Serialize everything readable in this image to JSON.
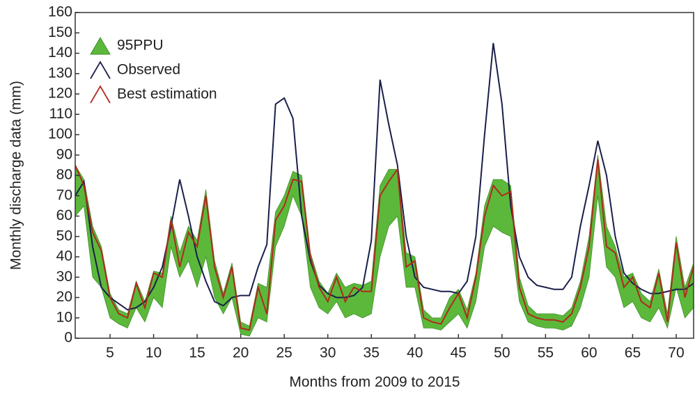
{
  "chart_data": {
    "type": "line",
    "xlabel": "Months from 2009 to 2015",
    "ylabel": "Monthly discharge data (mm)",
    "xlim": [
      1,
      72
    ],
    "xticks": [
      5,
      10,
      15,
      20,
      25,
      30,
      35,
      40,
      45,
      50,
      55,
      60,
      65,
      70
    ],
    "ylim": [
      0,
      160
    ],
    "yticks": [
      0,
      10,
      20,
      30,
      40,
      50,
      60,
      70,
      80,
      90,
      100,
      110,
      120,
      130,
      140,
      150,
      160
    ],
    "legend": "upper left",
    "grid": false,
    "x": [
      1,
      2,
      3,
      4,
      5,
      6,
      7,
      8,
      9,
      10,
      11,
      12,
      13,
      14,
      15,
      16,
      17,
      18,
      19,
      20,
      21,
      22,
      23,
      24,
      25,
      26,
      27,
      28,
      29,
      30,
      31,
      32,
      33,
      34,
      35,
      36,
      37,
      38,
      39,
      40,
      41,
      42,
      43,
      44,
      45,
      46,
      47,
      48,
      49,
      50,
      51,
      52,
      53,
      54,
      55,
      56,
      57,
      58,
      59,
      60,
      61,
      62,
      63,
      64,
      65,
      66,
      67,
      68,
      69,
      70,
      71,
      72
    ],
    "band": {
      "name": "95PPU",
      "color": "#5cb83a",
      "lower": [
        60,
        65,
        30,
        25,
        10,
        7,
        5,
        15,
        8,
        20,
        15,
        45,
        30,
        38,
        25,
        40,
        20,
        12,
        20,
        2,
        1,
        10,
        8,
        45,
        55,
        70,
        60,
        25,
        15,
        12,
        18,
        10,
        12,
        10,
        12,
        40,
        55,
        60,
        25,
        25,
        5,
        5,
        4,
        8,
        12,
        5,
        18,
        45,
        55,
        52,
        50,
        18,
        8,
        6,
        5,
        5,
        4,
        6,
        15,
        30,
        70,
        35,
        30,
        15,
        18,
        10,
        8,
        15,
        5,
        25,
        10,
        15
      ],
      "upper": [
        85,
        78,
        55,
        45,
        22,
        14,
        12,
        28,
        18,
        33,
        32,
        60,
        42,
        55,
        48,
        73,
        38,
        22,
        37,
        8,
        6,
        27,
        25,
        62,
        70,
        82,
        80,
        42,
        28,
        22,
        32,
        25,
        27,
        26,
        28,
        75,
        83,
        83,
        42,
        40,
        14,
        10,
        10,
        20,
        24,
        14,
        32,
        65,
        78,
        78,
        75,
        30,
        16,
        12,
        12,
        12,
        11,
        15,
        28,
        50,
        90,
        55,
        45,
        30,
        32,
        22,
        18,
        34,
        12,
        50,
        25,
        37
      ]
    },
    "series": [
      {
        "name": "Observed",
        "color": "#1a1f4a",
        "values": [
          70,
          77,
          45,
          25,
          20,
          17,
          14,
          15,
          18,
          25,
          35,
          55,
          78,
          60,
          40,
          28,
          18,
          16,
          20,
          21,
          21,
          35,
          46,
          115,
          118,
          108,
          60,
          38,
          26,
          22,
          20,
          20,
          21,
          25,
          48,
          127,
          105,
          85,
          50,
          30,
          25,
          24,
          23,
          23,
          22,
          28,
          50,
          100,
          145,
          115,
          65,
          40,
          30,
          26,
          25,
          24,
          24,
          30,
          55,
          75,
          97,
          80,
          50,
          32,
          27,
          24,
          22,
          22,
          23,
          24,
          24,
          27
        ]
      },
      {
        "name": "Best estimation",
        "color": "#b02a1e",
        "values": [
          85,
          75,
          52,
          43,
          20,
          12,
          10,
          27,
          15,
          32,
          30,
          58,
          35,
          52,
          45,
          70,
          35,
          20,
          35,
          5,
          4,
          25,
          12,
          58,
          65,
          78,
          77,
          40,
          25,
          18,
          30,
          18,
          25,
          23,
          23,
          70,
          77,
          83,
          35,
          38,
          10,
          8,
          7,
          15,
          22,
          10,
          30,
          60,
          75,
          70,
          72,
          25,
          12,
          10,
          9,
          9,
          8,
          12,
          25,
          45,
          88,
          45,
          42,
          25,
          30,
          18,
          15,
          32,
          8,
          47,
          20,
          35
        ]
      }
    ]
  }
}
